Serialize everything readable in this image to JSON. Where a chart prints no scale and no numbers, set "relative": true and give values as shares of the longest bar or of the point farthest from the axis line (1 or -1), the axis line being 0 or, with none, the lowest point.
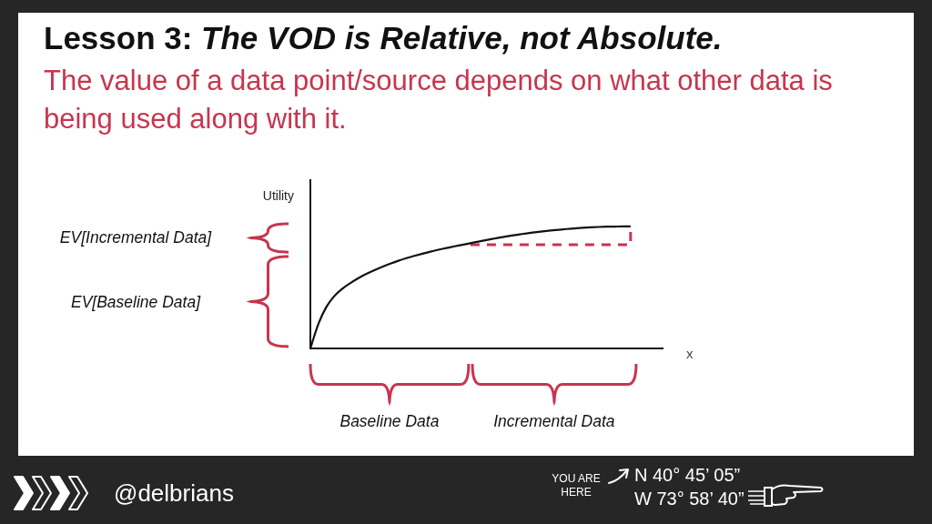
{
  "chart_data": {
    "type": "line",
    "title": "Lesson 3: The VOD is Relative, not Absolute.",
    "subtitle": "The value of a data point/source depends on what other data is being used along with it.",
    "xlabel": "x",
    "ylabel": "Utility",
    "categories": [
      null,
      null,
      null,
      null,
      null,
      null,
      null,
      null,
      null,
      null,
      null,
      null,
      null,
      null,
      null,
      null,
      null,
      null,
      null,
      null,
      null,
      null,
      null,
      null,
      null,
      null,
      null,
      null,
      null,
      null,
      null,
      null,
      null,
      null,
      null,
      null,
      null,
      null,
      null,
      null,
      null,
      null,
      null,
      null,
      null
    ],
    "series": [
      {
        "color": "#111111",
        "values": [
          0,
          0.2,
          0.34,
          0.43,
          0.49,
          0.536,
          0.576,
          0.611,
          0.642,
          0.67,
          0.696,
          0.719,
          0.74,
          0.759,
          0.777,
          0.794,
          0.809,
          0.823,
          0.837,
          0.85,
          0.863,
          0.876,
          0.889,
          0.901,
          0.913,
          0.924,
          0.934,
          0.943,
          0.952,
          0.96,
          0.967,
          0.973,
          0.979,
          0.984,
          0.989,
          0.993,
          0.996,
          0.998,
          0.999,
          1,
          1,
          null,
          null,
          null,
          null
        ]
      },
      {
        "type": "step",
        "color": "#c8354e",
        "line_style": "dashed",
        "values": [
          null,
          null,
          null,
          null,
          null,
          null,
          null,
          null,
          null,
          null,
          null,
          null,
          null,
          null,
          null,
          null,
          null,
          null,
          null,
          null,
          0.85,
          0.85,
          0.85,
          0.85,
          0.85,
          0.85,
          0.85,
          0.85,
          0.85,
          0.85,
          0.85,
          0.85,
          0.85,
          0.85,
          0.85,
          0.85,
          0.85,
          0.85,
          0.85,
          0.85,
          1,
          null,
          null,
          null,
          null
        ]
      }
    ],
    "relative": true,
    "tick_labels": false,
    "marker": "none",
    "annotations": [
      "EV[Incremental Data]",
      "EV[Baseline Data]",
      "Baseline Data",
      "Incremental Data",
      "@delbrians",
      "YOU ARE HERE",
      "N 40° 45’ 05”",
      "W 73° 58’ 40”"
    ]
  }
}
